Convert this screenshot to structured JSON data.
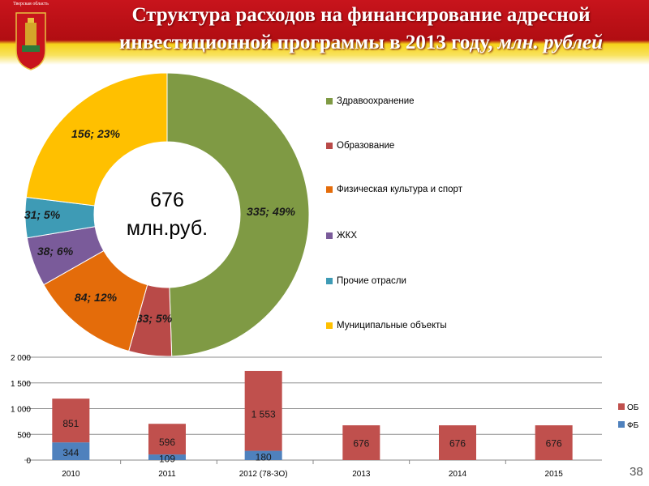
{
  "header": {
    "region": "Тверская область",
    "title_main": "Структура расходов на финансирование адресной инвестиционной программы в 2013 году,",
    "title_italic": "млн. рублей"
  },
  "page_number": "38",
  "chart_data": [
    {
      "type": "pie",
      "center_label": [
        "676",
        "млн.руб."
      ],
      "slices": [
        {
          "name": "Здравоохранение",
          "value": 335,
          "pct": 49,
          "label": "335; 49%",
          "color": "#7f9a44"
        },
        {
          "name": "Образование",
          "value": 33,
          "pct": 5,
          "label": "33; 5%",
          "color": "#b94a48"
        },
        {
          "name": "Физическая культура и спорт",
          "value": 84,
          "pct": 12,
          "label": "84; 12%",
          "color": "#e46c0a"
        },
        {
          "name": "ЖКХ",
          "value": 38,
          "pct": 6,
          "label": "38; 6%",
          "color": "#7a5b9a"
        },
        {
          "name": "Прочие отрасли",
          "value": 31,
          "pct": 5,
          "label": "31; 5%",
          "color": "#3e9bb5"
        },
        {
          "name": "Муниципальные объекты",
          "value": 156,
          "pct": 23,
          "label": "156; 23%",
          "color": "#ffc000"
        }
      ],
      "legend": "right"
    },
    {
      "type": "bar",
      "stacked": true,
      "categories": [
        "2010",
        "2011",
        "2012 (78-ЗО)",
        "2013",
        "2014",
        "2015"
      ],
      "series": [
        {
          "name": "ФБ",
          "color": "#4f81bd",
          "values": [
            344,
            109,
            180,
            0,
            0,
            0
          ]
        },
        {
          "name": "ОБ",
          "color": "#c0504d",
          "values": [
            851,
            596,
            1553,
            676,
            676,
            676
          ]
        }
      ],
      "ylim": [
        0,
        2000
      ],
      "yticks": [
        "0",
        "500",
        "1 000",
        "1 500",
        "2 000"
      ],
      "labels_fb": [
        "344",
        "109",
        "180",
        "",
        "",
        ""
      ],
      "labels_ob": [
        "851",
        "596",
        "1 553",
        "676",
        "676",
        "676"
      ],
      "legend": "right",
      "grid": true
    }
  ]
}
